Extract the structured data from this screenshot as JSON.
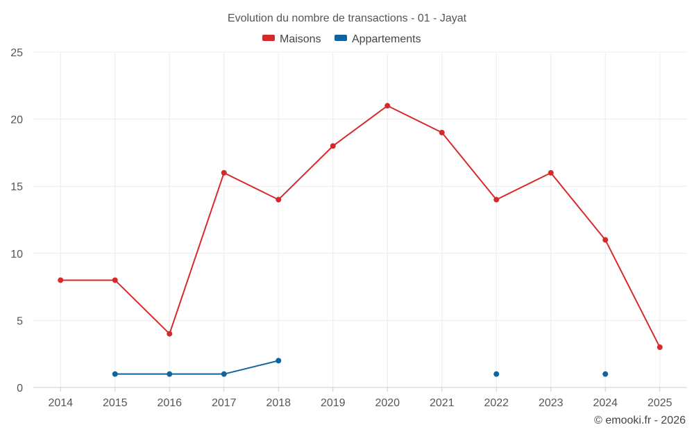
{
  "chart_data": {
    "type": "line",
    "title": "Evolution du nombre de transactions - 01 - Jayat",
    "categories": [
      "2014",
      "2015",
      "2016",
      "2017",
      "2018",
      "2019",
      "2020",
      "2021",
      "2022",
      "2023",
      "2024",
      "2025"
    ],
    "ylim": [
      0,
      25
    ],
    "yticks": [
      0,
      5,
      10,
      15,
      20,
      25
    ],
    "xlabel": "",
    "ylabel": "",
    "grid": true,
    "legend_position": "top-center",
    "series": [
      {
        "name": "Maisons",
        "color": "#d62a2a",
        "values": [
          8,
          8,
          4,
          16,
          14,
          18,
          21,
          19,
          14,
          16,
          11,
          3
        ]
      },
      {
        "name": "Appartements",
        "color": "#0f64a0",
        "values": [
          null,
          1,
          1,
          1,
          2,
          null,
          null,
          null,
          1,
          null,
          1,
          null
        ]
      }
    ]
  },
  "credit": "© emooki.fr - 2026"
}
